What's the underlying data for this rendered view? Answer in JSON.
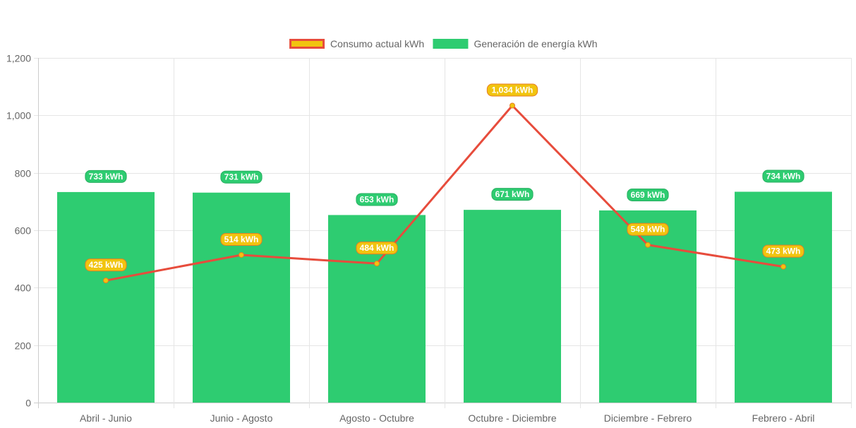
{
  "chart_data": {
    "type": "bar",
    "categories": [
      "Abril - Junio",
      "Junio - Agosto",
      "Agosto - Octubre",
      "Octubre - Diciembre",
      "Diciembre - Febrero",
      "Febrero - Abril"
    ],
    "series": [
      {
        "name": "Generación de energía kWh",
        "type": "bar",
        "values": [
          733,
          731,
          653,
          671,
          669,
          734
        ],
        "labels": [
          "733 kWh",
          "731 kWh",
          "653 kWh",
          "671 kWh",
          "669 kWh",
          "734 kWh"
        ],
        "color": "#2ecc71"
      },
      {
        "name": "Consumo actual kWh",
        "type": "line",
        "values": [
          425,
          514,
          484,
          1034,
          549,
          473
        ],
        "labels": [
          "425 kWh",
          "514 kWh",
          "484 kWh",
          "1,034 kWh",
          "549 kWh",
          "473 kWh"
        ],
        "color": "#e74c3c",
        "point_color": "#f1c40f"
      }
    ],
    "ylim": [
      0,
      1200
    ],
    "yticks": [
      "0",
      "200",
      "400",
      "600",
      "800",
      "1,000",
      "1,200"
    ],
    "grid": true,
    "legend_position": "top-center",
    "legend_order": [
      "Consumo actual kWh",
      "Generación de energía kWh"
    ]
  }
}
